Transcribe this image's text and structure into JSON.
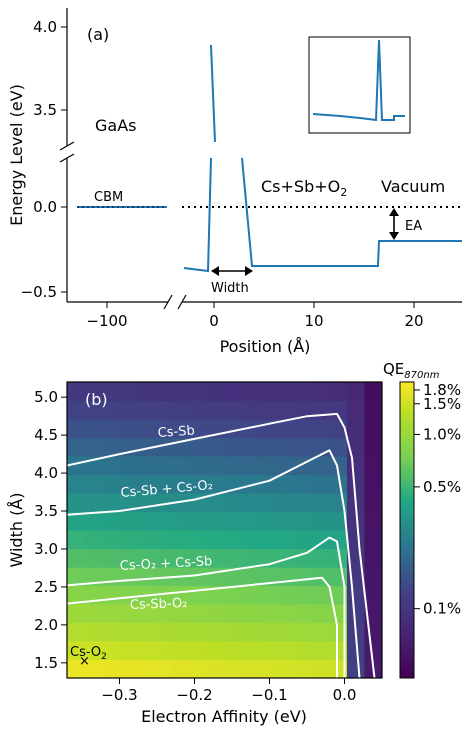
{
  "chart_data": [
    {
      "type": "line",
      "panel_label": "(a)",
      "xlabel": "Position (Å)",
      "ylabel": "Energy Level (eV)",
      "x_ticks": [
        "−100",
        "0",
        "10",
        "20"
      ],
      "y_ticks_upper": [
        "4.0",
        "3.5"
      ],
      "y_ticks_lower": [
        "0.0",
        "−0.5"
      ],
      "broken_x_axis": true,
      "broken_y_axis": true,
      "annotations": {
        "gaas": "GaAs",
        "cbm": "CBM",
        "region_prefix": "Cs+Sb+O",
        "region_sub": "2",
        "vacuum": "Vacuum",
        "ea": "EA",
        "width": "Width"
      },
      "series": [
        {
          "color": "#1f77b4",
          "segments": [
            {
              "x": [
                -120,
                -45
              ],
              "y": [
                0.0,
                0.0
              ]
            },
            {
              "x": [
                -2.5,
                0,
                0.5,
                3.8,
                4.5,
                16.5,
                17.2,
                25
              ],
              "y": [
                -0.37,
                -0.4,
                3.9,
                3.92,
                -0.35,
                -0.35,
                -0.2,
                -0.2
              ]
            }
          ]
        }
      ],
      "reference_line": {
        "y": 0.0,
        "style": "dotted",
        "color": "#000000"
      },
      "inset": true
    },
    {
      "type": "heatmap",
      "panel_label": "(b)",
      "xlabel": "Electron Affinity (eV)",
      "ylabel": "Width (Å)",
      "xlim": [
        -0.37,
        0.05
      ],
      "ylim": [
        1.3,
        5.2
      ],
      "x_ticks": [
        "−0.3",
        "−0.2",
        "−0.1",
        "0.0"
      ],
      "y_ticks": [
        "1.5",
        "2.0",
        "2.5",
        "3.0",
        "3.5",
        "4.0",
        "4.5",
        "5.0"
      ],
      "colorbar": {
        "title_prefix": "QE",
        "title_sub": "870nm",
        "scale": "log",
        "ticks": [
          "1.8%",
          "1.5%",
          "1.0%",
          "0.5%",
          "0.1%"
        ],
        "tick_values": [
          1.8,
          1.5,
          1.0,
          0.5,
          0.1
        ],
        "range": [
          0.04,
          2.0
        ]
      },
      "contours": [
        {
          "label": "Cs-Sb",
          "x": [
            -0.37,
            -0.3,
            -0.2,
            -0.1,
            -0.05,
            -0.01,
            0.0,
            0.01,
            0.02,
            0.04
          ],
          "y": [
            4.1,
            4.25,
            4.45,
            4.65,
            4.75,
            4.78,
            4.6,
            4.2,
            3.0,
            1.3
          ]
        },
        {
          "label": "Cs-Sb + Cs-O₂",
          "x": [
            -0.37,
            -0.3,
            -0.2,
            -0.1,
            -0.04,
            -0.02,
            -0.01,
            0.0,
            0.01,
            0.02
          ],
          "y": [
            3.45,
            3.5,
            3.65,
            3.9,
            4.2,
            4.3,
            4.1,
            3.5,
            2.5,
            1.3
          ]
        },
        {
          "label": "Cs-O₂ + Cs-Sb",
          "x": [
            -0.37,
            -0.3,
            -0.2,
            -0.1,
            -0.05,
            -0.02,
            -0.01,
            0.0,
            0.0
          ],
          "y": [
            2.52,
            2.58,
            2.65,
            2.8,
            2.95,
            3.15,
            3.1,
            2.5,
            1.3
          ]
        },
        {
          "label": "Cs-Sb-O₂",
          "x": [
            -0.37,
            -0.3,
            -0.2,
            -0.1,
            -0.05,
            -0.03,
            -0.02,
            -0.01,
            -0.01
          ],
          "y": [
            2.28,
            2.35,
            2.45,
            2.55,
            2.6,
            2.62,
            2.5,
            2.0,
            1.3
          ]
        }
      ],
      "marker": {
        "label": "Cs-O",
        "label_sub": "2",
        "x": -0.35,
        "y": 1.45,
        "symbol": "×"
      }
    }
  ]
}
